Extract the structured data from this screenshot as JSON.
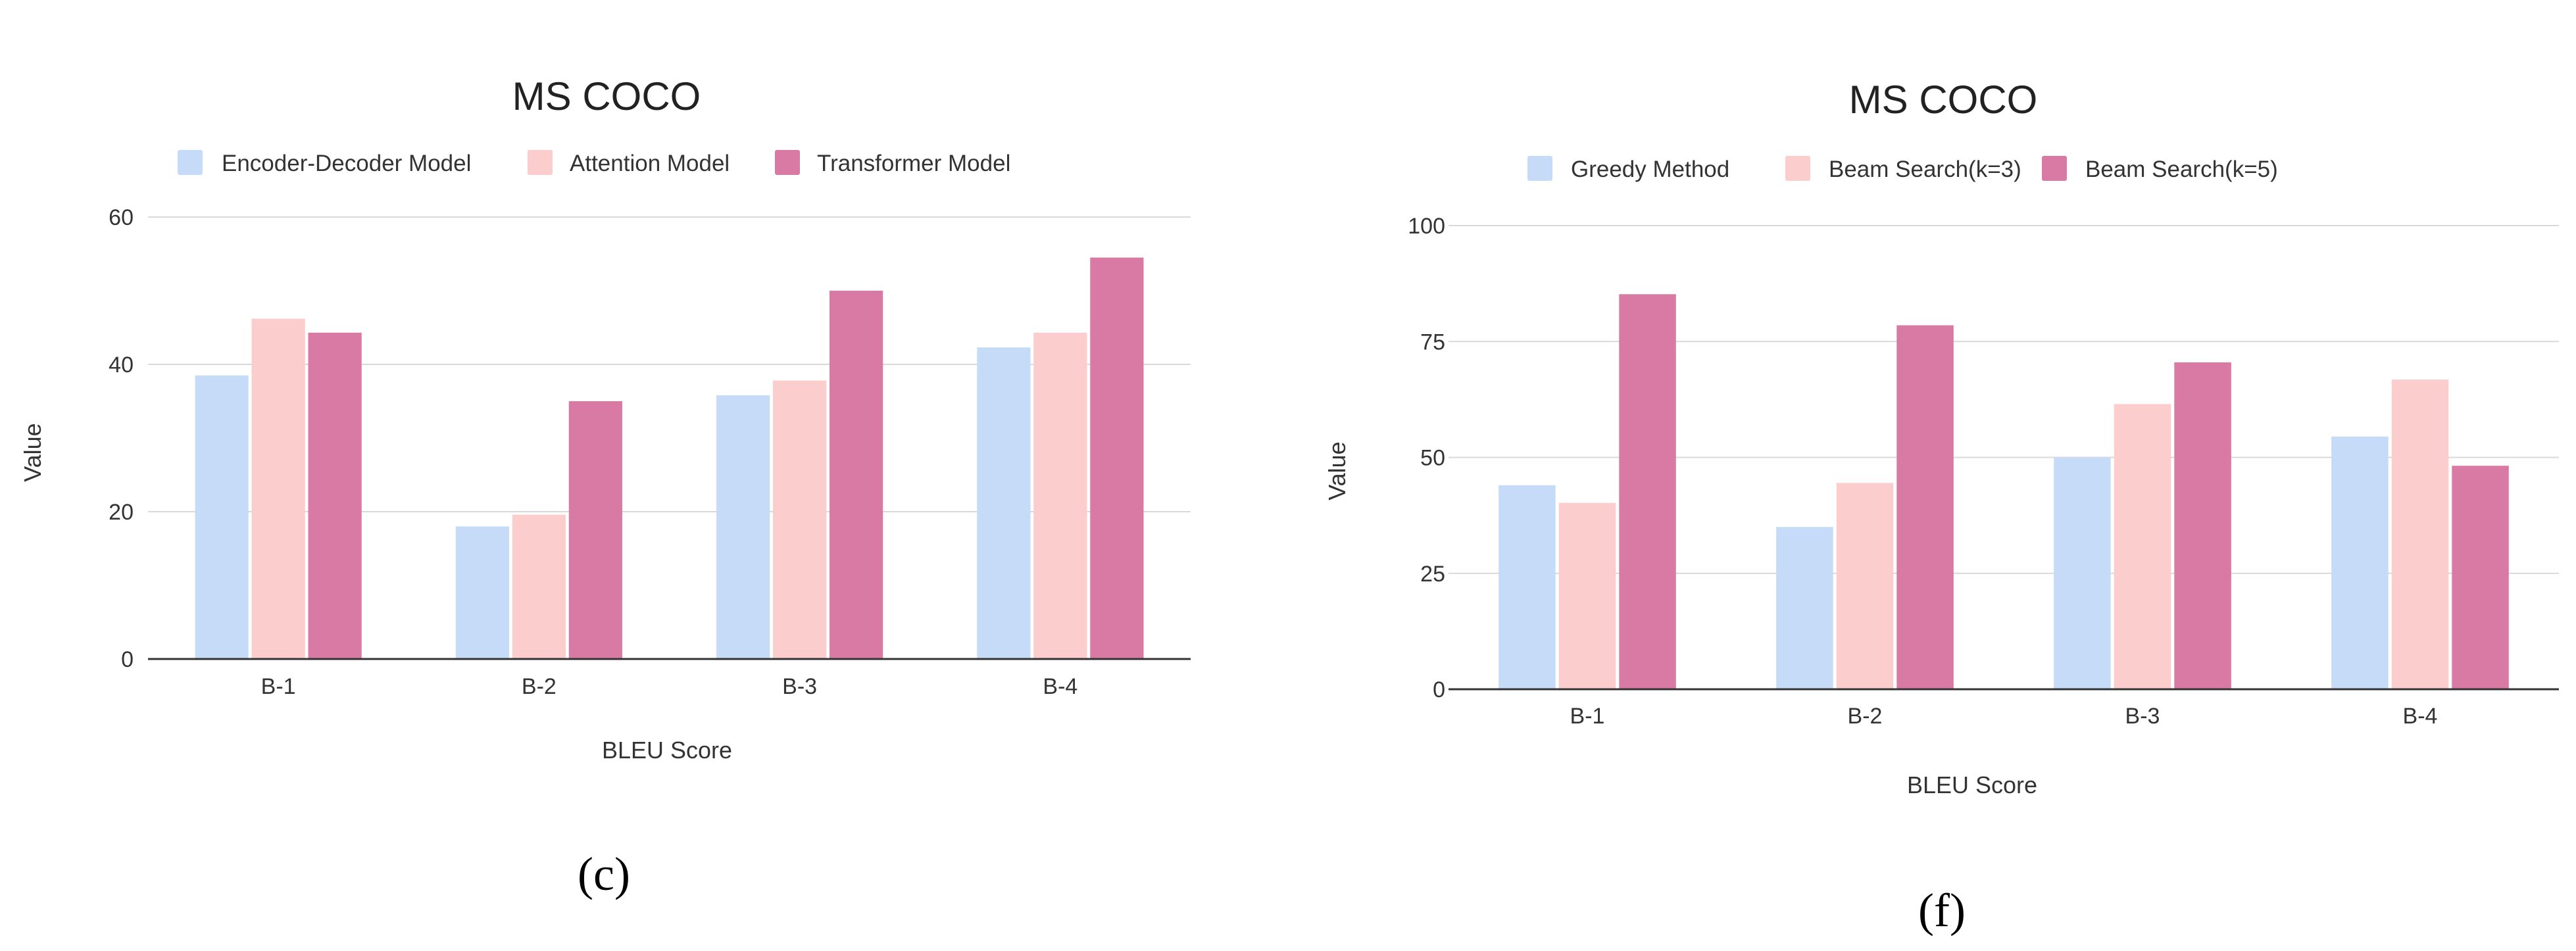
{
  "colors": {
    "series": [
      "#c6dbf7",
      "#fbcdcc",
      "#d97aa4"
    ],
    "grid": "#d9d9d9",
    "axis": "#333333",
    "text": "#333333",
    "title": "#222222"
  },
  "chart_data": [
    {
      "type": "bar",
      "panel_label": "(c)",
      "title": "MS COCO",
      "xlabel": "BLEU Score",
      "ylabel": "Value",
      "categories": [
        "B-1",
        "B-2",
        "B-3",
        "B-4"
      ],
      "ylim": [
        0,
        60
      ],
      "yticks": [
        0,
        20,
        40,
        60
      ],
      "grid": true,
      "legend_position": "top",
      "series": [
        {
          "name": "Encoder-Decoder Model",
          "values": [
            38.5,
            18,
            35.8,
            42.3
          ]
        },
        {
          "name": "Attention Model",
          "values": [
            46.2,
            19.6,
            37.8,
            44.3
          ]
        },
        {
          "name": "Transformer Model",
          "values": [
            44.3,
            35,
            50,
            54.5
          ]
        }
      ]
    },
    {
      "type": "bar",
      "panel_label": "(f)",
      "title": "MS COCO",
      "xlabel": "BLEU Score",
      "ylabel": "Value",
      "categories": [
        "B-1",
        "B-2",
        "B-3",
        "B-4"
      ],
      "ylim": [
        0,
        100
      ],
      "yticks": [
        0,
        25,
        50,
        75,
        100
      ],
      "grid": true,
      "legend_position": "top",
      "series": [
        {
          "name": "Greedy Method",
          "values": [
            44,
            35,
            50,
            54.5
          ]
        },
        {
          "name": "Beam Search(k=3)",
          "values": [
            40.2,
            44.5,
            61.5,
            66.8
          ]
        },
        {
          "name": "Beam Search(k=5)",
          "values": [
            85.2,
            78.5,
            70.5,
            48.2
          ]
        }
      ]
    }
  ]
}
